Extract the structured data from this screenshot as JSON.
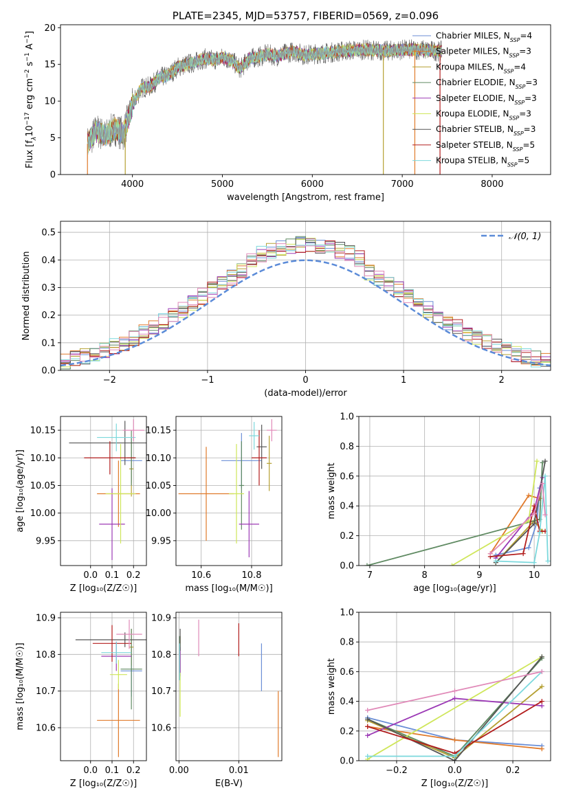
{
  "colors": {
    "palette": [
      "#6a8ed6",
      "#e07a2a",
      "#b5a032",
      "#5f8a62",
      "#9b38b5",
      "#cfe65a",
      "#555555",
      "#b21c1c",
      "#7bd8dc",
      "#e089b8"
    ],
    "grid": "#b0b0b0",
    "normal_curve": "#5b8bd8"
  },
  "chart_data": [
    {
      "id": "spectrum",
      "type": "line",
      "title": "PLATE=2345, MJD=53757, FIBERID=0569, z=0.096",
      "xlabel": "wavelength [Angstrom, rest frame]",
      "ylabel_parts": [
        "Flux [f",
        "λ",
        "10",
        "−17",
        " erg cm",
        "−2",
        " s",
        "−1",
        " A",
        "−1",
        "]"
      ],
      "xlim": [
        3200,
        8650
      ],
      "ylim": [
        0,
        20.4
      ],
      "xticks": [
        4000,
        5000,
        6000,
        7000,
        8000
      ],
      "yticks": [
        0,
        5,
        10,
        15,
        20
      ],
      "grid": false,
      "legend_position": "upper-right",
      "continuum": {
        "x": [
          3500,
          3600,
          3700,
          3800,
          3900,
          4000,
          4100,
          4200,
          4300,
          4400,
          4500,
          4600,
          4700,
          4800,
          4900,
          5000,
          5100,
          5200,
          5300,
          5400,
          5500,
          5600,
          5700,
          5800,
          5900,
          6000,
          6200,
          6400,
          6600,
          6800,
          7000,
          7200,
          7400
        ],
        "y": [
          4.2,
          6.0,
          5.2,
          6.3,
          5.5,
          9.5,
          11.8,
          12.0,
          13.2,
          13.5,
          14.6,
          15.0,
          15.3,
          15.8,
          15.6,
          15.9,
          15.6,
          14.4,
          15.8,
          16.0,
          16.4,
          16.1,
          16.5,
          16.8,
          16.3,
          16.4,
          16.6,
          16.9,
          17.0,
          16.8,
          17.0,
          17.0,
          16.8
        ]
      },
      "spike_drops": [
        {
          "x": 3500,
          "series": 1
        },
        {
          "x": 3920,
          "series": 2
        },
        {
          "x": 6790,
          "series": 2
        },
        {
          "x": 7140,
          "series": 1
        },
        {
          "x": 7420,
          "series": 7
        }
      ],
      "legend": [
        {
          "label": "Chabrier MILES, N",
          "sub": "SSP",
          "value": "=4"
        },
        {
          "label": "Salpeter MILES, N",
          "sub": "SSP",
          "value": "=3"
        },
        {
          "label": "Kroupa MILES, N",
          "sub": "SSP",
          "value": "=4"
        },
        {
          "label": "Chabrier ELODIE, N",
          "sub": "SSP",
          "value": "=3"
        },
        {
          "label": "Salpeter ELODIE, N",
          "sub": "SSP",
          "value": "=3"
        },
        {
          "label": "Kroupa ELODIE, N",
          "sub": "SSP",
          "value": "=3"
        },
        {
          "label": "Chabrier STELIB, N",
          "sub": "SSP",
          "value": "=3"
        },
        {
          "label": "Salpeter STELIB, N",
          "sub": "SSP",
          "value": "=5"
        },
        {
          "label": "Kroupa STELIB, N",
          "sub": "SSP",
          "value": "=5"
        }
      ]
    },
    {
      "id": "residuals",
      "type": "histogram",
      "xlabel": "(data-model)/error",
      "ylabel": "Normed distribution",
      "xlim": [
        -2.5,
        2.5
      ],
      "ylim": [
        0,
        0.54
      ],
      "xticks": [
        -2,
        -1,
        0,
        1,
        2
      ],
      "yticks": [
        0.0,
        0.1,
        0.2,
        0.3,
        0.4,
        0.5
      ],
      "grid": true,
      "bin_width": 0.1,
      "legend": "𝒩(0, 1)",
      "legend_position": "upper-right",
      "normal": {
        "mu": 0,
        "sigma": 1
      }
    },
    {
      "id": "age-vs-Z",
      "type": "scatter",
      "xlabel": "Z [log₁₀(Z/Z☉)]",
      "ylabel": "age  [log₁₀(age/yr)]",
      "xlim": [
        -0.14,
        0.26
      ],
      "ylim": [
        9.905,
        10.175
      ],
      "xticks": [
        0.0,
        0.1,
        0.2
      ],
      "yticks": [
        9.95,
        10.0,
        10.05,
        10.1,
        10.15
      ],
      "grid": true,
      "points": [
        {
          "x": 0.19,
          "y": 10.095,
          "ex": 0.05,
          "ey": 0.04,
          "c": 0
        },
        {
          "x": 0.13,
          "y": 10.035,
          "ex": 0.1,
          "ey": 0.06,
          "c": 1
        },
        {
          "x": 0.19,
          "y": 10.08,
          "ex": 0.01,
          "ey": 0.05,
          "c": 2
        },
        {
          "x": 0.19,
          "y": 10.1,
          "ex": 0.02,
          "ey": 0.05,
          "c": 3
        },
        {
          "x": 0.1,
          "y": 9.98,
          "ex": 0.06,
          "ey": 0.065,
          "c": 4
        },
        {
          "x": 0.14,
          "y": 10.035,
          "ex": 0.07,
          "ey": 0.09,
          "c": 5
        },
        {
          "x": 0.16,
          "y": 10.127,
          "ex": 0.26,
          "ey": 0.04,
          "c": 6
        },
        {
          "x": 0.09,
          "y": 10.1,
          "ex": 0.12,
          "ey": 0.03,
          "c": 7
        },
        {
          "x": 0.12,
          "y": 10.137,
          "ex": 0.09,
          "ey": 0.025,
          "c": 8
        },
        {
          "x": 0.2,
          "y": 10.15,
          "ex": 0.05,
          "ey": 0.02,
          "c": 9
        }
      ]
    },
    {
      "id": "age-vs-mass",
      "type": "scatter",
      "xlabel": "mass [log₁₀(M/M☉)]",
      "ylabel": "",
      "xlim": [
        10.5,
        10.92
      ],
      "ylim": [
        9.905,
        10.175
      ],
      "xticks": [
        10.6,
        10.8
      ],
      "yticks": [
        9.95,
        10.0,
        10.05,
        10.1,
        10.15
      ],
      "grid": true,
      "points": [
        {
          "x": 10.76,
          "y": 10.095,
          "ex": 0.08,
          "ey": 0.05,
          "c": 0
        },
        {
          "x": 10.62,
          "y": 10.035,
          "ex": 0.11,
          "ey": 0.085,
          "c": 1
        },
        {
          "x": 10.87,
          "y": 10.09,
          "ex": 0.01,
          "ey": 0.05,
          "c": 2
        },
        {
          "x": 10.76,
          "y": 10.05,
          "ex": 0.01,
          "ey": 0.08,
          "c": 3
        },
        {
          "x": 10.79,
          "y": 9.98,
          "ex": 0.04,
          "ey": 0.06,
          "c": 4
        },
        {
          "x": 10.74,
          "y": 10.035,
          "ex": 0.03,
          "ey": 0.09,
          "c": 5
        },
        {
          "x": 10.84,
          "y": 10.12,
          "ex": 0.02,
          "ey": 0.04,
          "c": 6
        },
        {
          "x": 10.83,
          "y": 10.1,
          "ex": 0.03,
          "ey": 0.05,
          "c": 7
        },
        {
          "x": 10.81,
          "y": 10.14,
          "ex": 0.02,
          "ey": 0.025,
          "c": 8
        },
        {
          "x": 10.88,
          "y": 10.15,
          "ex": 0.02,
          "ey": 0.02,
          "c": 9
        }
      ]
    },
    {
      "id": "mass-weight-vs-age",
      "type": "line",
      "xlabel": "age  [log₁₀(age/yr)]",
      "ylabel": "mass weight",
      "xlim": [
        6.8,
        10.3
      ],
      "ylim": [
        0,
        1.0
      ],
      "xticks": [
        7,
        8,
        9,
        10
      ],
      "yticks": [
        0.0,
        0.2,
        0.4,
        0.6,
        0.8,
        1.0
      ],
      "grid": true,
      "series": [
        {
          "c": 0,
          "x": [
            9.3,
            9.9,
            10.05,
            10.1
          ],
          "y": [
            0.07,
            0.12,
            0.29,
            0.52
          ]
        },
        {
          "c": 1,
          "x": [
            9.2,
            9.9,
            10.1
          ],
          "y": [
            0.08,
            0.47,
            0.45
          ]
        },
        {
          "c": 2,
          "x": [
            9.3,
            10.0,
            10.15
          ],
          "y": [
            0.02,
            0.3,
            0.23
          ]
        },
        {
          "c": 3,
          "x": [
            6.95,
            10.1,
            10.15
          ],
          "y": [
            0.0,
            0.31,
            0.69
          ]
        },
        {
          "c": 4,
          "x": [
            9.3,
            10.0,
            10.15
          ],
          "y": [
            0.05,
            0.37,
            0.59
          ]
        },
        {
          "c": 5,
          "x": [
            8.5,
            9.9,
            10.05
          ],
          "y": [
            0.0,
            0.3,
            0.7
          ]
        },
        {
          "c": 6,
          "x": [
            9.3,
            10.0,
            10.2
          ],
          "y": [
            0.02,
            0.28,
            0.7
          ]
        },
        {
          "c": 7,
          "x": [
            9.2,
            9.8,
            10.0,
            10.1,
            10.2
          ],
          "y": [
            0.06,
            0.08,
            0.4,
            0.23,
            0.23
          ]
        },
        {
          "c": 8,
          "x": [
            9.3,
            10.0,
            10.1,
            10.2,
            10.25
          ],
          "y": [
            0.03,
            0.02,
            0.22,
            0.6,
            0.03
          ]
        },
        {
          "c": 9,
          "x": [
            9.2,
            10.0,
            10.15,
            10.2
          ],
          "y": [
            0.08,
            0.35,
            0.55,
            0.34
          ]
        }
      ]
    },
    {
      "id": "mass-vs-Z",
      "type": "scatter",
      "xlabel": "Z [log₁₀(Z/Z☉)]",
      "ylabel": "mass [log₁₀(M/M☉)]",
      "xlim": [
        -0.14,
        0.26
      ],
      "ylim": [
        10.51,
        10.915
      ],
      "xticks": [
        0.0,
        0.1,
        0.2
      ],
      "yticks": [
        10.6,
        10.7,
        10.8,
        10.9
      ],
      "grid": true,
      "points": [
        {
          "x": 0.19,
          "y": 10.755,
          "ex": 0.05,
          "ey": 0.07,
          "c": 0
        },
        {
          "x": 0.13,
          "y": 10.62,
          "ex": 0.1,
          "ey": 0.1,
          "c": 1
        },
        {
          "x": 0.19,
          "y": 10.82,
          "ex": 0.01,
          "ey": 0.05,
          "c": 2
        },
        {
          "x": 0.19,
          "y": 10.76,
          "ex": 0.05,
          "ey": 0.11,
          "c": 3
        },
        {
          "x": 0.12,
          "y": 10.795,
          "ex": 0.07,
          "ey": 0.04,
          "c": 4
        },
        {
          "x": 0.13,
          "y": 10.745,
          "ex": 0.04,
          "ey": 0.04,
          "c": 5
        },
        {
          "x": 0.16,
          "y": 10.84,
          "ex": 0.23,
          "ey": 0.02,
          "c": 6
        },
        {
          "x": 0.1,
          "y": 10.83,
          "ex": 0.09,
          "ey": 0.05,
          "c": 7
        },
        {
          "x": 0.12,
          "y": 10.805,
          "ex": 0.07,
          "ey": 0.03,
          "c": 8
        },
        {
          "x": 0.18,
          "y": 10.855,
          "ex": 0.06,
          "ey": 0.04,
          "c": 9
        }
      ]
    },
    {
      "id": "mass-vs-EBV",
      "type": "scatter",
      "xlabel": "E(B-V)",
      "ylabel": "",
      "xlim": [
        -0.0005,
        0.0172
      ],
      "ylim": [
        10.51,
        10.915
      ],
      "xticks": [
        0.0,
        0.01
      ],
      "xtick_labels": [
        "0.00",
        "0.01"
      ],
      "yticks": [
        10.6,
        10.7,
        10.8,
        10.9
      ],
      "grid": true,
      "points": [
        {
          "x": 0.0138,
          "y": 10.765,
          "ex": 0,
          "ey": 0.065,
          "c": 0
        },
        {
          "x": 0.0166,
          "y": 10.61,
          "ex": 0,
          "ey": 0.09,
          "c": 1
        },
        {
          "x": 0.0002,
          "y": 10.8,
          "ex": 0,
          "ey": 0.05,
          "c": 2
        },
        {
          "x": 0.0001,
          "y": 10.79,
          "ex": 0,
          "ey": 0.06,
          "c": 3
        },
        {
          "x": 0.0002,
          "y": 10.78,
          "ex": 0,
          "ey": 0.04,
          "c": 4
        },
        {
          "x": 0.0002,
          "y": 10.69,
          "ex": 0,
          "ey": 0.06,
          "c": 5
        },
        {
          "x": 0.0002,
          "y": 10.84,
          "ex": 0,
          "ey": 0.03,
          "c": 6
        },
        {
          "x": 0.01,
          "y": 10.84,
          "ex": 0,
          "ey": 0.045,
          "c": 7
        },
        {
          "x": 0.0001,
          "y": 10.78,
          "ex": 0,
          "ey": 0.05,
          "c": 8
        },
        {
          "x": 0.0033,
          "y": 10.845,
          "ex": 0,
          "ey": 0.05,
          "c": 9
        }
      ]
    },
    {
      "id": "mass-weight-vs-Z",
      "type": "line",
      "xlabel": "Z [log₁₀(Z/Z☉)]",
      "ylabel": "mass weight",
      "xlim": [
        -0.33,
        0.33
      ],
      "ylim": [
        0,
        1.0
      ],
      "xticks": [
        -0.2,
        0.0,
        0.2
      ],
      "xtick_labels": [
        "−0.2",
        "0.0",
        "0.2"
      ],
      "yticks": [
        0.0,
        0.2,
        0.4,
        0.6,
        0.8,
        1.0
      ],
      "grid": true,
      "series": [
        {
          "c": 0,
          "x": [
            -0.3,
            0.0,
            0.3
          ],
          "y": [
            0.29,
            0.14,
            0.1
          ]
        },
        {
          "c": 1,
          "x": [
            -0.3,
            0.0,
            0.3
          ],
          "y": [
            0.23,
            0.14,
            0.08
          ]
        },
        {
          "c": 2,
          "x": [
            -0.3,
            0.0,
            0.3
          ],
          "y": [
            0.27,
            0.02,
            0.5
          ]
        },
        {
          "c": 3,
          "x": [
            -0.3,
            0.0,
            0.3
          ],
          "y": [
            0.28,
            0.03,
            0.69
          ]
        },
        {
          "c": 4,
          "x": [
            -0.3,
            0.0,
            0.3
          ],
          "y": [
            0.17,
            0.42,
            0.37
          ]
        },
        {
          "c": 5,
          "x": [
            -0.3,
            0.3
          ],
          "y": [
            0.01,
            0.7
          ]
        },
        {
          "c": 6,
          "x": [
            -0.3,
            0.0,
            0.3
          ],
          "y": [
            0.28,
            0.0,
            0.7
          ]
        },
        {
          "c": 7,
          "x": [
            -0.3,
            0.0,
            0.3
          ],
          "y": [
            0.23,
            0.05,
            0.4
          ]
        },
        {
          "c": 8,
          "x": [
            -0.3,
            0.0,
            0.3
          ],
          "y": [
            0.03,
            0.03,
            0.6
          ]
        },
        {
          "c": 9,
          "x": [
            -0.3,
            0.0,
            0.3
          ],
          "y": [
            0.34,
            0.47,
            0.6
          ]
        }
      ]
    }
  ]
}
